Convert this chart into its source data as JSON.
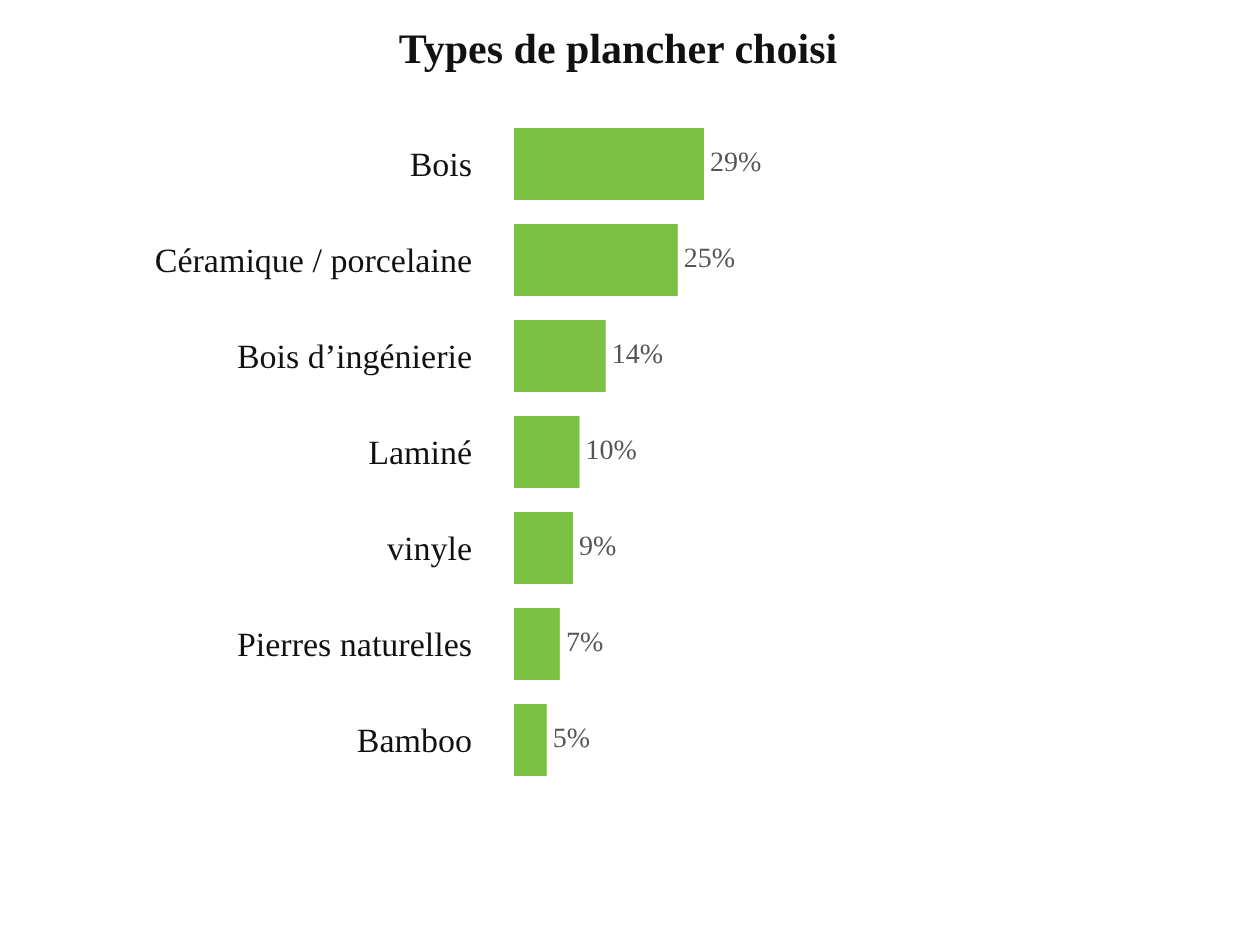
{
  "chart_data": {
    "type": "bar",
    "orientation": "horizontal",
    "title": "Types de plancher choisi",
    "categories": [
      "Bois",
      "Céramique / porcelaine",
      "Bois d’ingénierie",
      "Laminé",
      "vinyle",
      "Pierres naturelles",
      "Bamboo"
    ],
    "values": [
      29,
      25,
      14,
      10,
      9,
      7,
      5
    ],
    "value_labels": [
      "29%",
      "25%",
      "14%",
      "10%",
      "9%",
      "7%",
      "5%"
    ],
    "color": "#7ac143"
  }
}
